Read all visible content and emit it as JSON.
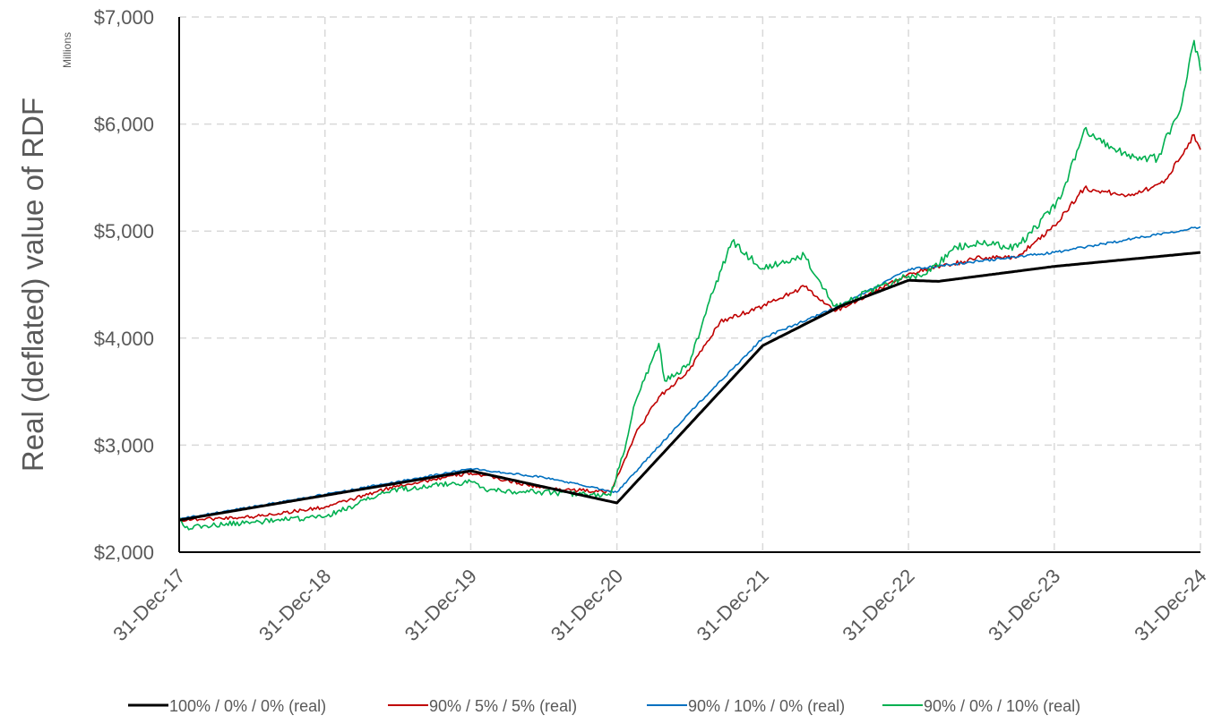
{
  "chart_data": {
    "type": "line",
    "title": "",
    "ylabel": "Real (deflated) value of RDF",
    "y_units": "Millions",
    "ylim": [
      2000,
      7000
    ],
    "y_ticks": [
      "$2,000",
      "$3,000",
      "$4,000",
      "$5,000",
      "$6,000",
      "$7,000"
    ],
    "x_ticks": [
      "31-Dec-17",
      "31-Dec-18",
      "31-Dec-19",
      "31-Dec-20",
      "31-Dec-21",
      "31-Dec-22",
      "31-Dec-23",
      "31-Dec-24"
    ],
    "grid": "dashed",
    "legend_position": "bottom",
    "series": [
      {
        "name": "100% / 0% / 0% (real)",
        "color": "#000000",
        "points": [
          [
            "31-Dec-17",
            2300
          ],
          [
            "31-Dec-18",
            2530
          ],
          [
            "31-Dec-19",
            2760
          ],
          [
            "31-Dec-20",
            2460
          ],
          [
            "31-Dec-21",
            3930
          ],
          [
            "15-Jul-22",
            4300
          ],
          [
            "31-Dec-22",
            4540
          ],
          [
            "15-Mar-23",
            4530
          ],
          [
            "31-Dec-23",
            4670
          ],
          [
            "31-Dec-24",
            4800
          ]
        ]
      },
      {
        "name": "90% / 5% / 5% (real)",
        "color": "#C00000",
        "points": [
          [
            "31-Dec-17",
            2300
          ],
          [
            "30-Jun-18",
            2330
          ],
          [
            "31-Dec-18",
            2420
          ],
          [
            "30-Jun-19",
            2620
          ],
          [
            "31-Dec-19",
            2740
          ],
          [
            "30-Jun-20",
            2600
          ],
          [
            "15-Dec-20",
            2560
          ],
          [
            "15-Feb-21",
            3100
          ],
          [
            "15-Apr-21",
            3450
          ],
          [
            "30-Jun-21",
            3700
          ],
          [
            "15-Sep-21",
            4150
          ],
          [
            "31-Dec-21",
            4300
          ],
          [
            "15-Apr-22",
            4480
          ],
          [
            "30-Jun-22",
            4250
          ],
          [
            "31-Dec-22",
            4600
          ],
          [
            "30-Jun-23",
            4750
          ],
          [
            "30-Sep-23",
            4760
          ],
          [
            "31-Dec-23",
            5050
          ],
          [
            "15-Mar-24",
            5400
          ],
          [
            "30-Jun-24",
            5330
          ],
          [
            "30-Sep-24",
            5450
          ],
          [
            "15-Dec-24",
            5900
          ],
          [
            "31-Dec-24",
            5760
          ]
        ]
      },
      {
        "name": "90% / 10% / 0% (real)",
        "color": "#0070C0",
        "points": [
          [
            "31-Dec-17",
            2310
          ],
          [
            "31-Dec-18",
            2540
          ],
          [
            "31-Dec-19",
            2780
          ],
          [
            "30-Jun-20",
            2700
          ],
          [
            "31-Dec-20",
            2560
          ],
          [
            "30-Jun-21",
            3300
          ],
          [
            "31-Dec-21",
            4000
          ],
          [
            "30-Jun-22",
            4280
          ],
          [
            "31-Dec-22",
            4640
          ],
          [
            "30-Jun-23",
            4720
          ],
          [
            "31-Dec-23",
            4800
          ],
          [
            "30-Jun-24",
            4920
          ],
          [
            "31-Dec-24",
            5040
          ]
        ]
      },
      {
        "name": "90% / 0% / 10% (real)",
        "color": "#00B050",
        "points": [
          [
            "31-Dec-17",
            2330
          ],
          [
            "15-Jan-18",
            2230
          ],
          [
            "30-Jun-18",
            2280
          ],
          [
            "31-Dec-18",
            2330
          ],
          [
            "15-Jun-19",
            2580
          ],
          [
            "31-Dec-19",
            2660
          ],
          [
            "15-Feb-20",
            2580
          ],
          [
            "30-Jun-20",
            2560
          ],
          [
            "15-Dec-20",
            2530
          ],
          [
            "15-Jan-21",
            2900
          ],
          [
            "15-Feb-21",
            3400
          ],
          [
            "15-Apr-21",
            3950
          ],
          [
            "30-Apr-21",
            3600
          ],
          [
            "30-Jun-21",
            3750
          ],
          [
            "15-Aug-21",
            4300
          ],
          [
            "15-Oct-21",
            4900
          ],
          [
            "31-Dec-21",
            4650
          ],
          [
            "15-Apr-22",
            4770
          ],
          [
            "30-Jun-22",
            4300
          ],
          [
            "31-Dec-22",
            4580
          ],
          [
            "15-Feb-23",
            4600
          ],
          [
            "30-Apr-23",
            4850
          ],
          [
            "30-Jun-23",
            4880
          ],
          [
            "30-Sep-23",
            4850
          ],
          [
            "15-Jan-24",
            5300
          ],
          [
            "15-Mar-24",
            5950
          ],
          [
            "30-Jun-24",
            5700
          ],
          [
            "15-Sep-24",
            5680
          ],
          [
            "15-Nov-24",
            6200
          ],
          [
            "15-Dec-24",
            6780
          ],
          [
            "31-Dec-24",
            6500
          ]
        ]
      }
    ]
  }
}
